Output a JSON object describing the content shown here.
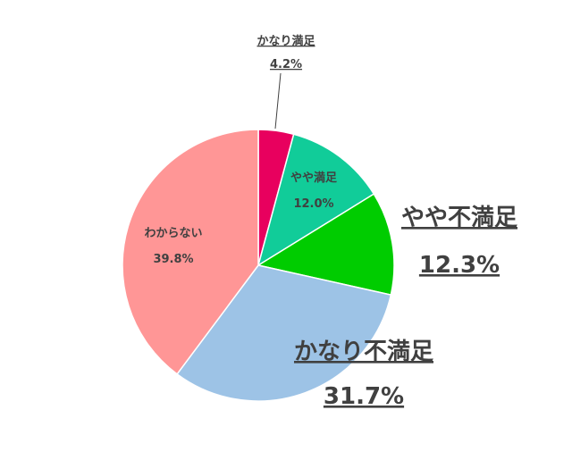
{
  "chart_data": {
    "type": "pie",
    "start_angle_deg": 0,
    "direction": "clockwise",
    "slices": [
      {
        "label": "かなり満足",
        "value": 4.2,
        "value_label": "4.2%",
        "color": "#e8005e",
        "label_style": "small-outside"
      },
      {
        "label": "やや満足",
        "value": 12.0,
        "value_label": "12.0%",
        "color": "#11cc99",
        "label_style": "small-inside"
      },
      {
        "label": "やや不満足",
        "value": 12.3,
        "value_label": "12.3%",
        "color": "#00cc00",
        "label_style": "large-outside"
      },
      {
        "label": "かなり不満足",
        "value": 31.7,
        "value_label": "31.7%",
        "color": "#9dc3e6",
        "label_style": "large-outside"
      },
      {
        "label": "わからない",
        "value": 39.8,
        "value_label": "39.8%",
        "color": "#ff9696",
        "label_style": "small-inside"
      }
    ],
    "legend": "none"
  }
}
